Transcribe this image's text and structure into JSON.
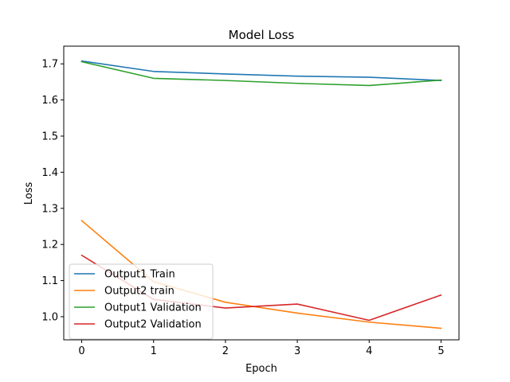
{
  "chart_data": {
    "type": "line",
    "title": "Model Loss",
    "xlabel": "Epoch",
    "ylabel": "Loss",
    "x": [
      0,
      1,
      2,
      3,
      4,
      5
    ],
    "xticks": [
      "0",
      "1",
      "2",
      "3",
      "4",
      "5"
    ],
    "yticks": [
      "1.0",
      "1.1",
      "1.2",
      "1.3",
      "1.4",
      "1.5",
      "1.6",
      "1.7"
    ],
    "xlim": [
      -0.25,
      5.25
    ],
    "ylim": [
      0.936,
      1.749
    ],
    "grid": false,
    "legend_position": "lower-left",
    "series": [
      {
        "name": "Output1 Train",
        "color": "#1f77b4",
        "values": [
          1.708,
          1.679,
          1.672,
          1.666,
          1.663,
          1.654
        ]
      },
      {
        "name": "Output2 train",
        "color": "#ff7f0e",
        "values": [
          1.266,
          1.097,
          1.04,
          1.01,
          0.985,
          0.968
        ]
      },
      {
        "name": "Output1 Validation",
        "color": "#2ca02c",
        "values": [
          1.706,
          1.66,
          1.654,
          1.646,
          1.64,
          1.655
        ]
      },
      {
        "name": "Output2 Validation",
        "color": "#d62728",
        "values": [
          1.17,
          1.048,
          1.024,
          1.035,
          0.99,
          1.06
        ]
      }
    ]
  }
}
